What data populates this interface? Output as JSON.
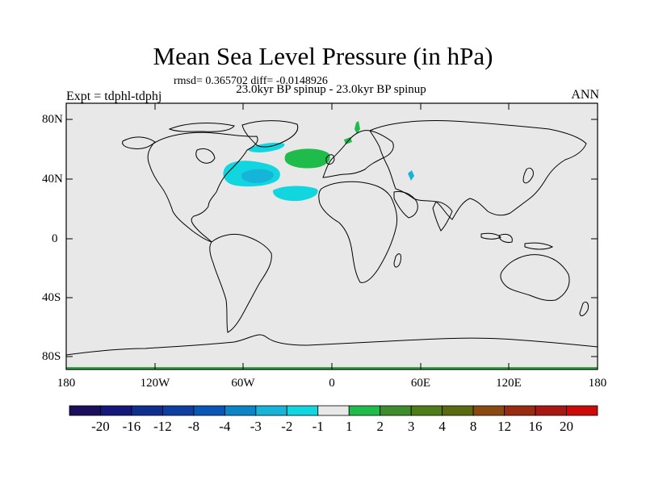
{
  "title": "Mean Sea Level Pressure (in hPa)",
  "stats_line": "rmsd= 0.365702  diff= -0.0148926",
  "subtitle": "23.0kyr BP spinup - 23.0kyr BP spinup",
  "expt_label": "Expt = tdphl-tdphj",
  "season_label": "ANN",
  "latitude_ticks": [
    "80N",
    "40N",
    "0",
    "40S",
    "80S"
  ],
  "longitude_ticks": [
    "180",
    "120W",
    "60W",
    "0",
    "60E",
    "120E",
    "180"
  ],
  "colorbar": {
    "labels": [
      "-20",
      "-16",
      "-12",
      "-8",
      "-4",
      "-3",
      "-2",
      "-1",
      "1",
      "2",
      "3",
      "4",
      "8",
      "12",
      "16",
      "20"
    ],
    "colors": [
      "#1b0f5c",
      "#16177a",
      "#0f2f8f",
      "#0d3fa3",
      "#0856b8",
      "#0a85c8",
      "#15b4d8",
      "#12d6df",
      "#e8e8e8",
      "#1fbc4b",
      "#3d8e2a",
      "#4c7d17",
      "#5a6a0f",
      "#8a4a0f",
      "#9a2a10",
      "#a81712",
      "#cc0a0a"
    ]
  },
  "colors": {
    "background_field": "#e8e8e8",
    "negative_light": "#12d6df",
    "negative_medium": "#15b4d8",
    "positive_light": "#1fbc4b",
    "antarctic_strip": "#3aa84a"
  }
}
